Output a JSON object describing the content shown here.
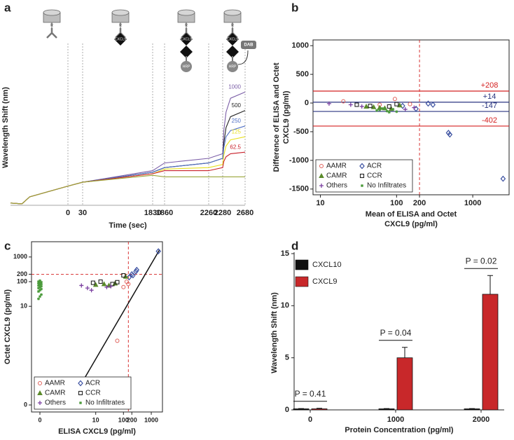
{
  "chart_data": [
    {
      "type": "line",
      "panel": "a",
      "xlabel": "Time (sec)",
      "ylabel": "Wavelength Shift (nm)",
      "annotations": [
        "R",
        "CXCL9",
        "HRP",
        "DAB"
      ],
      "x": [
        -300,
        -240,
        -200,
        0,
        30,
        1830,
        1860,
        2260,
        2280,
        2300,
        2340,
        2420,
        2680
      ],
      "xlim": [
        -300,
        2680
      ],
      "xticks": [
        0,
        30,
        1830,
        1860,
        2260,
        2280,
        2680
      ],
      "ylim": [
        0,
        10
      ],
      "series": [
        {
          "name": "1000",
          "color": "#7b5ea7",
          "values": [
            0.1,
            0.05,
            0.5,
            1.2,
            1.45,
            2.2,
            2.7,
            3.0,
            3.3,
            4.8,
            6.0,
            6.9,
            7.3
          ]
        },
        {
          "name": "500",
          "color": "#222222",
          "values": [
            0.1,
            0.05,
            0.5,
            1.2,
            1.45,
            2.1,
            2.4,
            2.7,
            3.0,
            4.0,
            5.0,
            5.7,
            6.1
          ]
        },
        {
          "name": "250",
          "color": "#4f6fc4",
          "values": [
            0.1,
            0.05,
            0.5,
            1.2,
            1.45,
            2.1,
            2.4,
            2.7,
            3.0,
            3.7,
            4.4,
            4.8,
            5.1
          ]
        },
        {
          "name": "125",
          "color": "#e8e020",
          "values": [
            0.1,
            0.05,
            0.5,
            1.2,
            1.45,
            2.0,
            2.3,
            2.4,
            2.6,
            3.2,
            3.8,
            4.2,
            4.4
          ]
        },
        {
          "name": "62.5",
          "color": "#c8202a",
          "values": [
            0.1,
            0.05,
            0.5,
            1.2,
            1.45,
            2.0,
            2.2,
            2.2,
            2.4,
            2.8,
            3.1,
            3.3,
            3.4
          ]
        },
        {
          "color": "#9aa63a",
          "values": [
            0.1,
            0.05,
            0.5,
            1.2,
            1.45,
            1.9,
            1.8,
            1.8,
            1.8,
            1.8,
            1.8,
            1.8,
            1.8
          ]
        }
      ]
    },
    {
      "type": "scatter",
      "panel": "b",
      "xlabel": [
        "Mean of ELISA and Octet",
        "CXCL9 (pg/ml)"
      ],
      "ylabel": [
        "Difference of ELISA and Octet",
        "CXCL9 (pg/ml)"
      ],
      "xscale": "log",
      "xlim": [
        8,
        3000
      ],
      "xticks": [
        10,
        100,
        200,
        1000
      ],
      "ylim": [
        -1600,
        1100
      ],
      "yticks": [
        -1500,
        -1000,
        -500,
        0,
        500,
        1000
      ],
      "hlines": [
        {
          "value": 208,
          "label": "+208",
          "color": "#d42020"
        },
        {
          "value": 14,
          "label": "+14",
          "color": "#2a3580"
        },
        {
          "value": -147,
          "label": "-147",
          "color": "#2a3580"
        },
        {
          "value": -402,
          "label": "-402",
          "color": "#d42020"
        }
      ],
      "vline": 200,
      "legend": "lower left",
      "series": [
        {
          "name": "AAMR",
          "marker": "circle",
          "color": "#e0605a",
          "x": [
            20,
            95,
            150,
            60
          ],
          "values": [
            30,
            70,
            -20,
            -30
          ]
        },
        {
          "name": "ACR",
          "marker": "diamond",
          "color": "#3a4fa0",
          "x": [
            500,
            480,
            2500,
            300,
            180,
            120,
            260
          ],
          "values": [
            -550,
            -520,
            -1320,
            -30,
            -100,
            -50,
            -10
          ]
        },
        {
          "name": "CAMR",
          "marker": "triangle",
          "color": "#5a8a2a",
          "x": [
            40,
            60,
            70,
            85,
            110,
            50
          ],
          "values": [
            -60,
            -80,
            -90,
            -100,
            -40,
            -70
          ]
        },
        {
          "name": "CCR",
          "marker": "square",
          "color": "#222222",
          "x": [
            30,
            45,
            100,
            80
          ],
          "values": [
            -30,
            -50,
            -20,
            -60
          ]
        },
        {
          "name": "Others",
          "marker": "plus",
          "color": "#7a3fa0",
          "x": [
            13,
            25,
            35,
            130,
            170
          ],
          "values": [
            -10,
            -30,
            -60,
            -110,
            -80
          ]
        },
        {
          "name": "No Infiltrates",
          "marker": "dot",
          "color": "#4a9a3a",
          "x": [
            60,
            70,
            75,
            90,
            55,
            100,
            65,
            80
          ],
          "values": [
            -120,
            -100,
            -140,
            -110,
            -130,
            -150,
            -95,
            -160
          ]
        }
      ]
    },
    {
      "type": "scatter",
      "panel": "c",
      "xlabel": [
        "ELISA CXCL9 (pg/ml)"
      ],
      "ylabel": [
        "Octet CXCL9 (pg/ml)"
      ],
      "xscale": "symlog",
      "yscale": "symlog",
      "xlim": [
        0,
        2000
      ],
      "xticks": [
        0,
        10,
        100,
        200,
        1000
      ],
      "ylim": [
        0,
        3000
      ],
      "yticks": [
        0,
        10,
        100,
        200,
        1000
      ],
      "vline": 150,
      "hline": 200,
      "fit_line": {
        "x": [
          1,
          2000
        ],
        "y": [
          0,
          2000
        ]
      },
      "legend": "lower left",
      "series": [
        {
          "name": "AAMR",
          "marker": "circle",
          "color": "#e0605a",
          "x": [
            60,
            100,
            130,
            150
          ],
          "values": [
            0.4,
            60,
            100,
            80
          ]
        },
        {
          "name": "ACR",
          "marker": "diamond",
          "color": "#3a4fa0",
          "x": [
            1800,
            300,
            280,
            200,
            220,
            160
          ],
          "values": [
            1700,
            300,
            260,
            200,
            180,
            150
          ]
        },
        {
          "name": "CAMR",
          "marker": "triangle",
          "color": "#5a8a2a",
          "x": [
            10,
            20,
            30,
            120,
            50
          ],
          "values": [
            75,
            80,
            70,
            160,
            85
          ]
        },
        {
          "name": "CCR",
          "marker": "square",
          "color": "#222222",
          "x": [
            8,
            15,
            40,
            100,
            60
          ],
          "values": [
            90,
            100,
            80,
            180,
            95
          ]
        },
        {
          "name": "Others",
          "marker": "plus",
          "color": "#7a3fa0",
          "x": [
            3,
            5,
            7,
            25,
            35
          ],
          "values": [
            70,
            55,
            45,
            60,
            65
          ]
        },
        {
          "name": "No Infiltrates",
          "marker": "dot",
          "color": "#4a9a3a",
          "x": [
            0,
            0,
            0,
            0,
            0,
            0,
            0,
            0,
            0,
            0,
            0,
            0,
            0,
            0,
            0,
            0,
            0
          ],
          "values": [
            20,
            25,
            30,
            40,
            45,
            50,
            55,
            60,
            65,
            70,
            75,
            80,
            85,
            90,
            95,
            100,
            110
          ]
        }
      ]
    },
    {
      "type": "bar",
      "panel": "d",
      "xlabel": "Protein Concentration (pg/ml)",
      "ylabel": "Wavelength Shift (nm)",
      "categories": [
        "0",
        "1000",
        "2000"
      ],
      "ylim": [
        0,
        15
      ],
      "yticks": [
        0,
        5,
        10,
        15
      ],
      "legend": "upper left",
      "p_values": [
        "P = 0.41",
        "P = 0.04",
        "P = 0.02"
      ],
      "series": [
        {
          "name": "CXCL10",
          "color": "#111111",
          "values": [
            0.1,
            0.1,
            0.1
          ],
          "errors": [
            0.03,
            0.03,
            0.03
          ]
        },
        {
          "name": "CXCL9",
          "color": "#c8282a",
          "values": [
            0.1,
            5.0,
            11.1
          ],
          "errors": [
            0.05,
            1.0,
            1.8
          ]
        }
      ]
    }
  ]
}
